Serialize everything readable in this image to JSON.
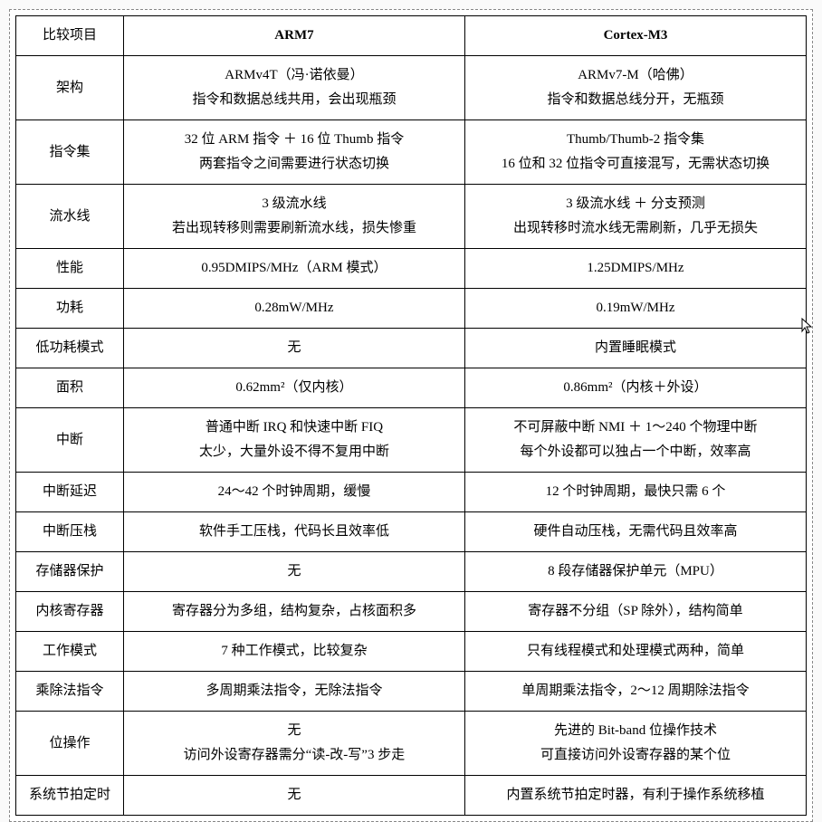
{
  "table": {
    "headers": {
      "compare": "比较项目",
      "arm7": "ARM7",
      "cortex": "Cortex-M3"
    },
    "rows": [
      {
        "label": "架构",
        "arm7": "ARMv4T（冯·诺依曼）\n指令和数据总线共用，会出现瓶颈",
        "cortex": "ARMv7-M（哈佛）\n指令和数据总线分开，无瓶颈"
      },
      {
        "label": "指令集",
        "arm7": "32 位 ARM 指令 ＋ 16 位 Thumb 指令\n两套指令之间需要进行状态切换",
        "cortex": "Thumb/Thumb-2 指令集\n16 位和 32 位指令可直接混写，无需状态切换"
      },
      {
        "label": "流水线",
        "arm7": "3 级流水线\n若出现转移则需要刷新流水线，损失惨重",
        "cortex": "3 级流水线 ＋ 分支预测\n出现转移时流水线无需刷新，几乎无损失"
      },
      {
        "label": "性能",
        "arm7": "0.95DMIPS/MHz（ARM 模式）",
        "cortex": "1.25DMIPS/MHz"
      },
      {
        "label": "功耗",
        "arm7": "0.28mW/MHz",
        "cortex": "0.19mW/MHz"
      },
      {
        "label": "低功耗模式",
        "arm7": "无",
        "cortex": "内置睡眠模式"
      },
      {
        "label": "面积",
        "arm7": "0.62mm²（仅内核）",
        "cortex": "0.86mm²（内核＋外设）"
      },
      {
        "label": "中断",
        "arm7": "普通中断 IRQ 和快速中断 FIQ\n太少，大量外设不得不复用中断",
        "cortex": "不可屏蔽中断 NMI ＋ 1～240 个物理中断\n每个外设都可以独占一个中断，效率高"
      },
      {
        "label": "中断延迟",
        "arm7": "24～42 个时钟周期，缓慢",
        "cortex": "12 个时钟周期，最快只需 6 个"
      },
      {
        "label": "中断压栈",
        "arm7": "软件手工压栈，代码长且效率低",
        "cortex": "硬件自动压栈，无需代码且效率高"
      },
      {
        "label": "存储器保护",
        "arm7": "无",
        "cortex": "8 段存储器保护单元（MPU）"
      },
      {
        "label": "内核寄存器",
        "arm7": "寄存器分为多组，结构复杂，占核面积多",
        "cortex": "寄存器不分组（SP 除外），结构简单"
      },
      {
        "label": "工作模式",
        "arm7": "7 种工作模式，比较复杂",
        "cortex": "只有线程模式和处理模式两种，简单"
      },
      {
        "label": "乘除法指令",
        "arm7": "多周期乘法指令，无除法指令",
        "cortex": "单周期乘法指令，2～12 周期除法指令"
      },
      {
        "label": "位操作",
        "arm7": "无\n访问外设寄存器需分“读-改-写”3 步走",
        "cortex": "先进的 Bit-band 位操作技术\n可直接访问外设寄存器的某个位"
      },
      {
        "label": "系统节拍定时",
        "arm7": "无",
        "cortex": "内置系统节拍定时器，有利于操作系统移植"
      }
    ]
  },
  "cursor_glyph": "↖",
  "watermark": ""
}
